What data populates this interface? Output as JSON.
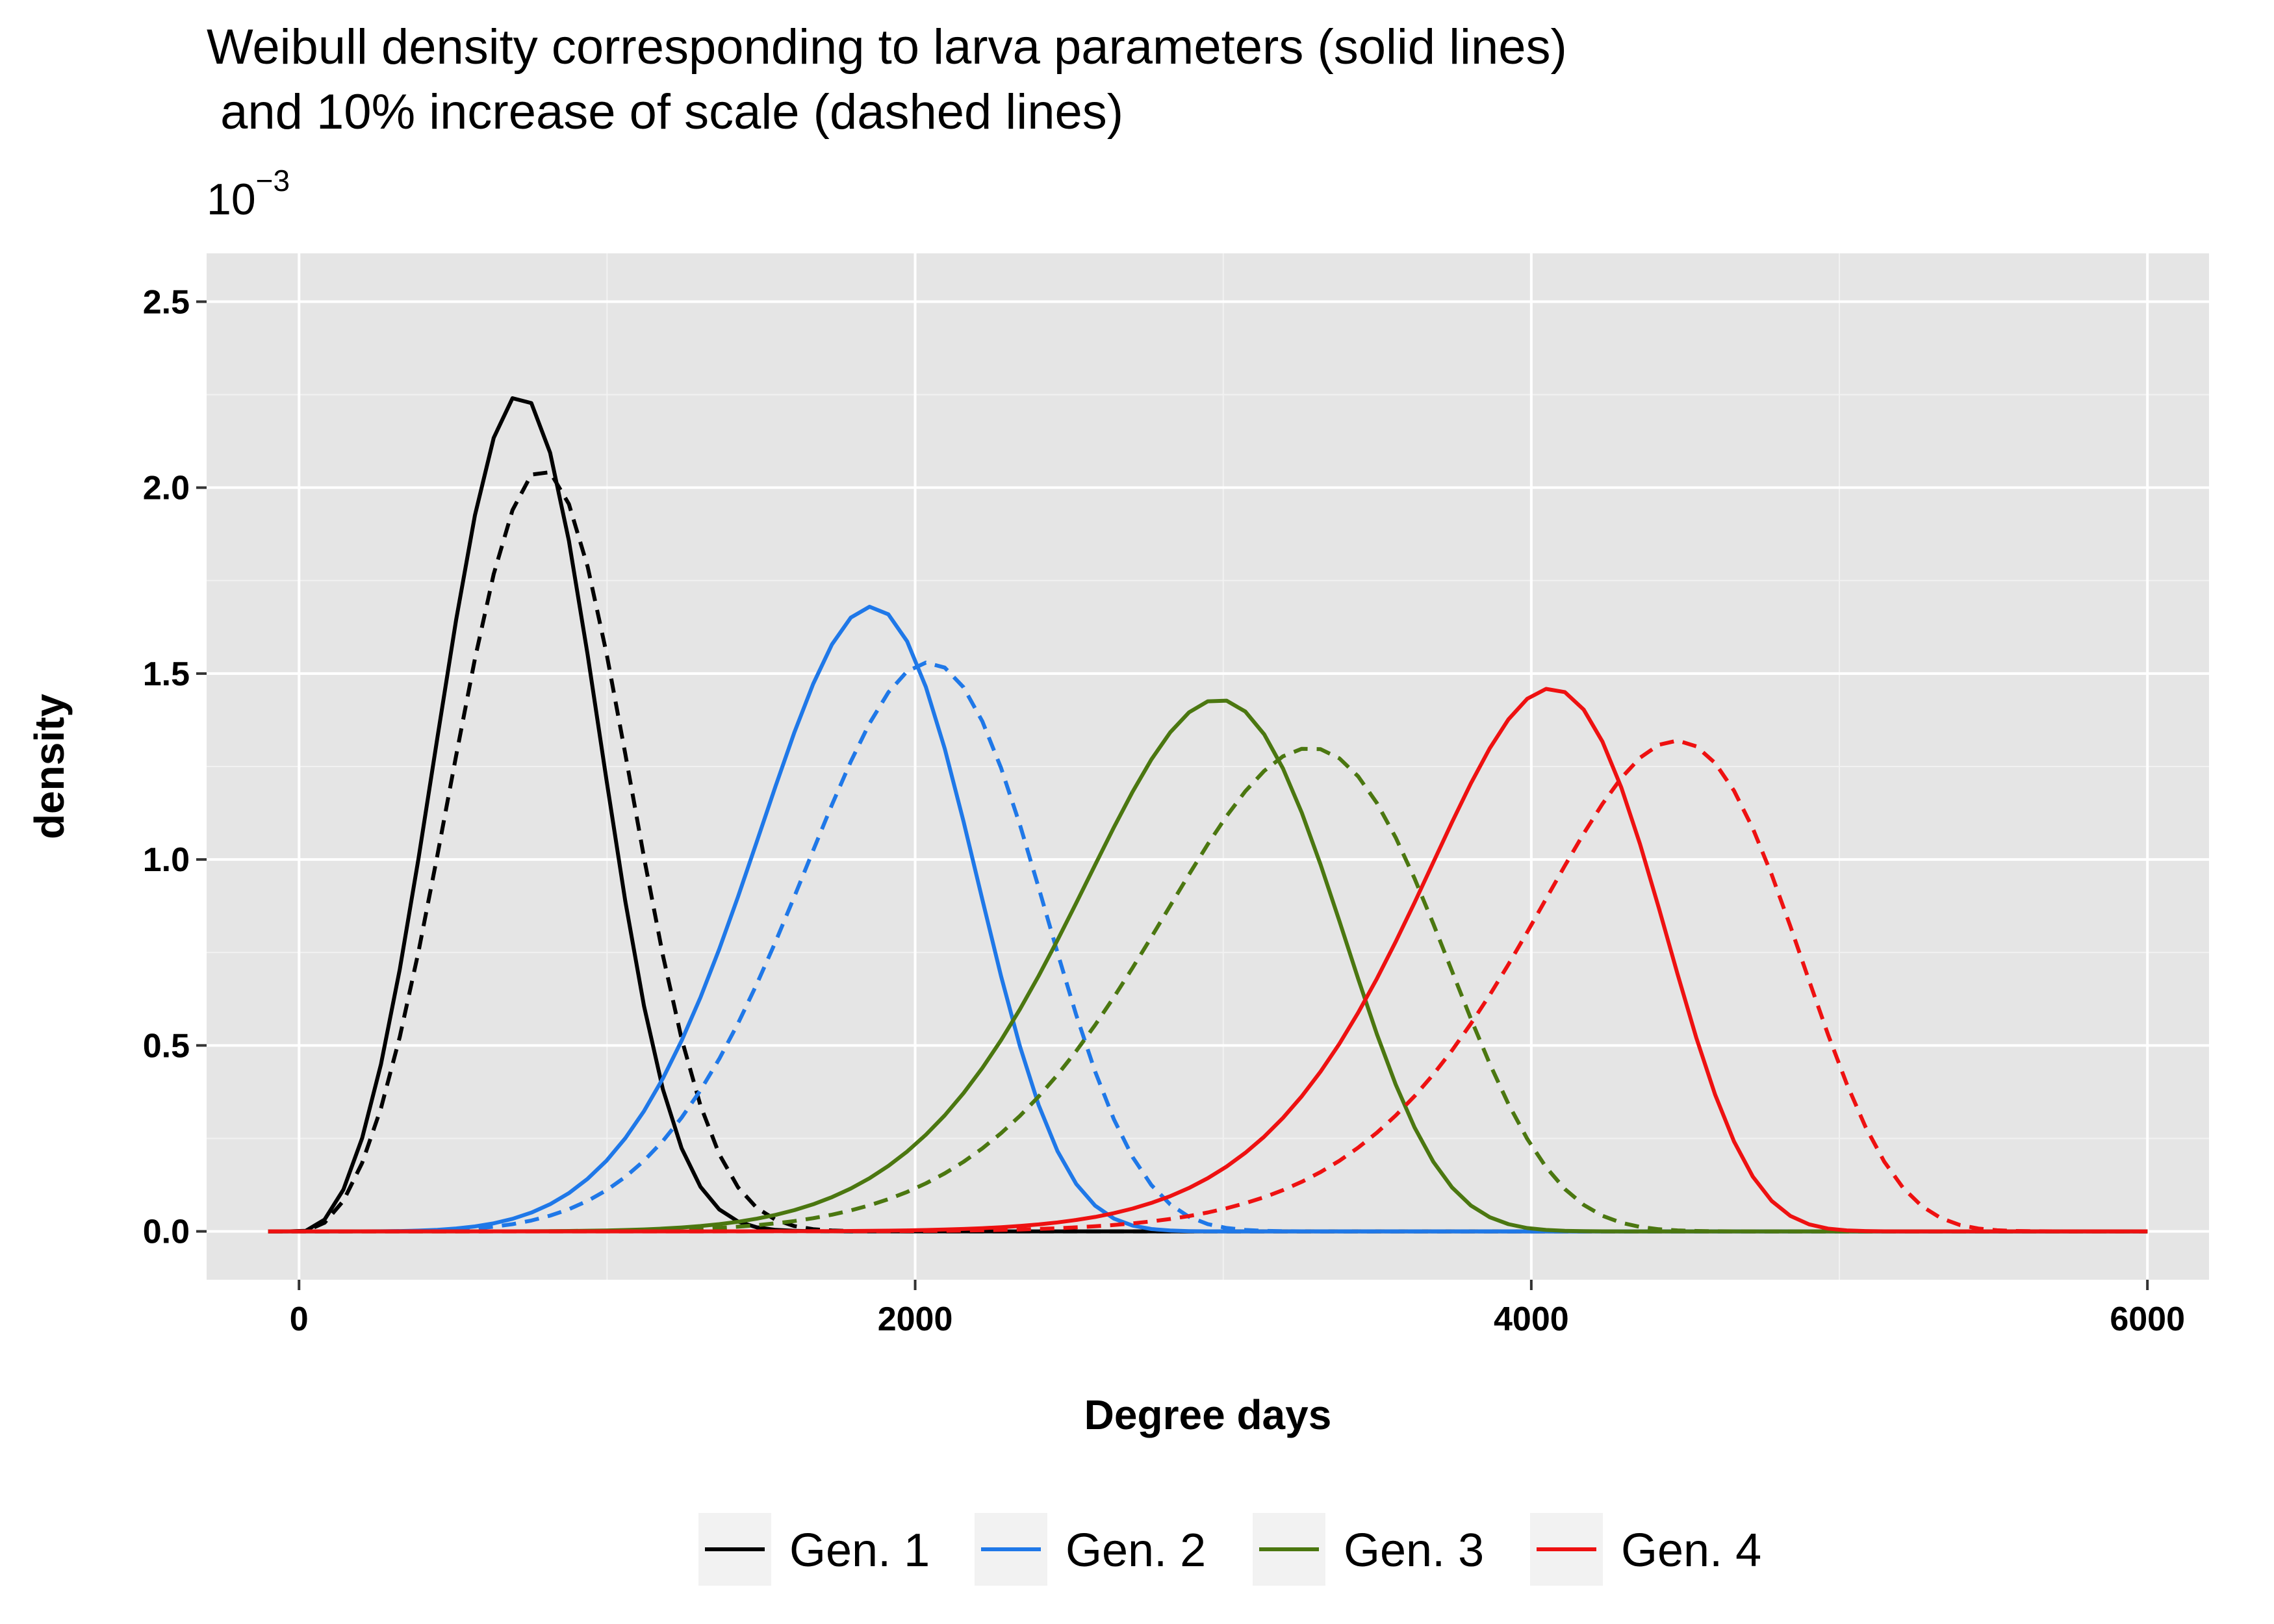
{
  "chart_data": {
    "type": "line",
    "title": "Weibull density corresponding to larva parameters (solid lines)",
    "title_line2": " and 10% increase of scale (dashed lines)",
    "y_multiplier": "10",
    "y_multiplier_exponent": "−3",
    "xlabel": "Degree days",
    "ylabel": "density",
    "xlim": [
      -300,
      6200
    ],
    "ylim": [
      -0.13,
      2.63
    ],
    "x_ticks": [
      0,
      2000,
      4000,
      6000
    ],
    "x_tick_labels": [
      "0",
      "2000",
      "4000",
      "6000"
    ],
    "y_ticks": [
      0.0,
      0.5,
      1.0,
      1.5,
      2.0,
      2.5
    ],
    "y_tick_labels": [
      "0.0",
      "0.5",
      "1.0",
      "1.5",
      "2.0",
      "2.5"
    ],
    "grid": true,
    "legend_position": "bottom",
    "x_range": [
      -100,
      6000
    ],
    "series": [
      {
        "name": "Gen. 1",
        "color": "#000000",
        "style": "solid",
        "shape": 3.3,
        "scale": 800,
        "peak": 2.25
      },
      {
        "name": "Gen. 1",
        "color": "#000000",
        "style": "dashed",
        "shape": 3.3,
        "scale": 880,
        "peak": 2.05
      },
      {
        "name": "Gen. 2",
        "color": "#1f78e8",
        "style": "solid",
        "shape": 5.8,
        "scale": 1920,
        "peak": 1.68
      },
      {
        "name": "Gen. 2",
        "color": "#1f78e8",
        "style": "dashed",
        "shape": 5.8,
        "scale": 2112,
        "peak": 1.53
      },
      {
        "name": "Gen. 3",
        "color": "#4b7710",
        "style": "solid",
        "shape": 7.6,
        "scale": 3040,
        "peak": 1.43
      },
      {
        "name": "Gen. 3",
        "color": "#4b7710",
        "style": "dashed",
        "shape": 7.6,
        "scale": 3344,
        "peak": 1.3
      },
      {
        "name": "Gen. 4",
        "color": "#ee1111",
        "style": "solid",
        "shape": 11.0,
        "scale": 4100,
        "peak": 1.46
      },
      {
        "name": "Gen. 4",
        "color": "#ee1111",
        "style": "dashed",
        "shape": 11.0,
        "scale": 4510,
        "peak": 1.32
      }
    ],
    "legend": [
      {
        "label": "Gen. 1",
        "color": "#000000"
      },
      {
        "label": "Gen. 2",
        "color": "#1f78e8"
      },
      {
        "label": "Gen. 3",
        "color": "#4b7710"
      },
      {
        "label": "Gen. 4",
        "color": "#ee1111"
      }
    ]
  }
}
